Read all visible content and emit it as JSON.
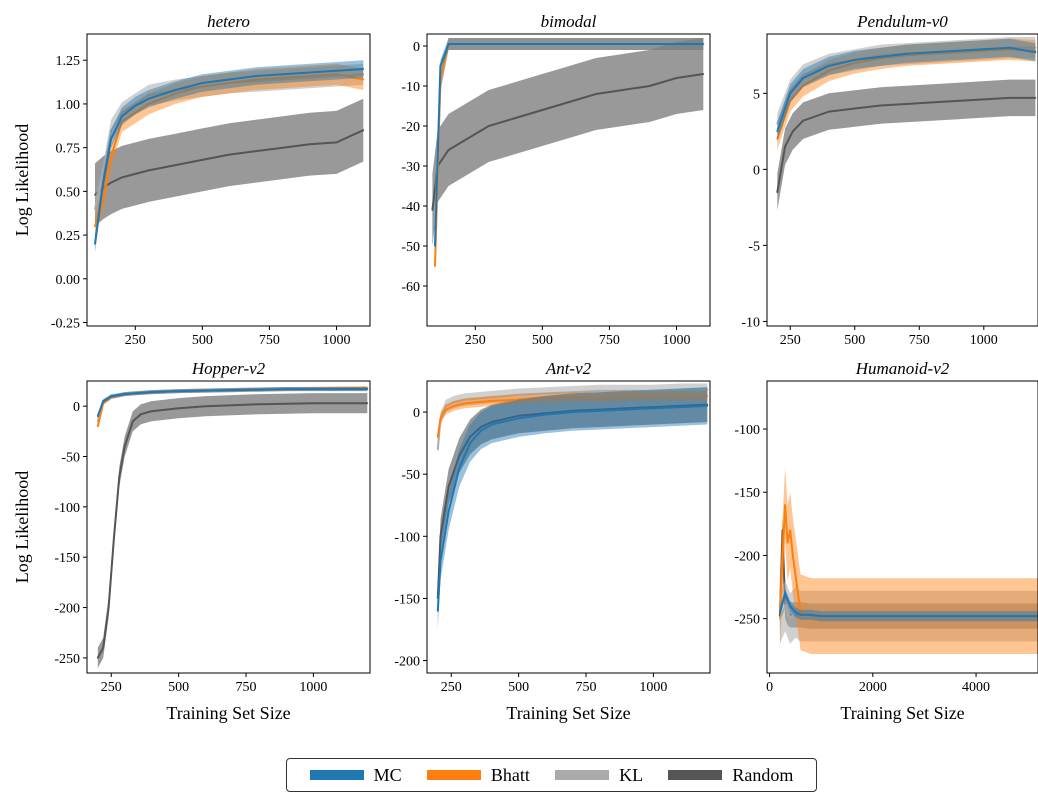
{
  "chart_data": [
    {
      "type": "line",
      "title": "hetero",
      "xlabel": "",
      "ylabel": "Log Likelihood",
      "xlim": [
        70,
        1125
      ],
      "ylim": [
        -0.27,
        1.4
      ],
      "xticks": [
        250,
        500,
        750,
        1000
      ],
      "yticks": [
        -0.25,
        0.0,
        0.25,
        0.5,
        0.75,
        1.0,
        1.25
      ],
      "ytick_labels": [
        "-0.25",
        "0.00",
        "0.25",
        "0.50",
        "0.75",
        "1.00",
        "1.25"
      ],
      "series": [
        {
          "name": "MC",
          "x": [
            100,
            130,
            160,
            200,
            250,
            300,
            400,
            500,
            600,
            700,
            800,
            900,
            1000,
            1100
          ],
          "values": [
            0.2,
            0.55,
            0.8,
            0.93,
            0.99,
            1.03,
            1.08,
            1.12,
            1.14,
            1.16,
            1.17,
            1.18,
            1.19,
            1.2
          ],
          "band": 0.05
        },
        {
          "name": "Bhatt",
          "x": [
            100,
            130,
            160,
            200,
            250,
            300,
            400,
            500,
            600,
            700,
            800,
            900,
            1000,
            1100
          ],
          "values": [
            0.3,
            0.45,
            0.7,
            0.9,
            0.95,
            1.0,
            1.06,
            1.1,
            1.12,
            1.14,
            1.15,
            1.16,
            1.17,
            1.14
          ],
          "band": 0.06
        },
        {
          "name": "KL",
          "x": [
            100,
            130,
            160,
            200,
            250,
            300,
            400,
            500,
            600,
            700,
            800,
            900,
            1000,
            1100
          ],
          "values": [
            0.4,
            0.6,
            0.85,
            0.95,
            1.0,
            1.05,
            1.08,
            1.1,
            1.12,
            1.13,
            1.14,
            1.15,
            1.16,
            1.17
          ],
          "band": 0.06
        },
        {
          "name": "Random",
          "x": [
            100,
            130,
            160,
            200,
            250,
            300,
            400,
            500,
            600,
            700,
            800,
            900,
            1000,
            1100
          ],
          "values": [
            0.48,
            0.52,
            0.55,
            0.58,
            0.6,
            0.62,
            0.65,
            0.68,
            0.71,
            0.73,
            0.75,
            0.77,
            0.78,
            0.85
          ],
          "band": 0.18
        }
      ]
    },
    {
      "type": "line",
      "title": "bimodal",
      "xlabel": "",
      "ylabel": "",
      "xlim": [
        70,
        1125
      ],
      "ylim": [
        -70,
        3
      ],
      "xticks": [
        250,
        500,
        750,
        1000
      ],
      "yticks": [
        -60,
        -50,
        -40,
        -30,
        -20,
        -10,
        0
      ],
      "ytick_labels": [
        "-60",
        "-50",
        "-40",
        "-30",
        "-20",
        "-10",
        "0"
      ],
      "series": [
        {
          "name": "MC",
          "x": [
            100,
            120,
            150,
            200,
            300,
            500,
            700,
            900,
            1100
          ],
          "values": [
            -50,
            -5,
            0.5,
            0.5,
            0.5,
            0.5,
            0.5,
            0.5,
            0.5
          ],
          "band": 1.5
        },
        {
          "name": "Bhatt",
          "x": [
            100,
            120,
            150,
            200,
            300,
            500,
            700,
            900,
            1100
          ],
          "values": [
            -55,
            -8,
            0.5,
            0.5,
            0.5,
            0.5,
            0.5,
            0.5,
            0.5
          ],
          "band": 1.5
        },
        {
          "name": "KL",
          "x": [
            100,
            120,
            150,
            200,
            300,
            500,
            700,
            900,
            1100
          ],
          "values": [
            -45,
            -10,
            0.5,
            0.5,
            0.5,
            0.5,
            0.5,
            0.5,
            0.5
          ],
          "band": 1.5
        },
        {
          "name": "Random",
          "x": [
            90,
            110,
            150,
            200,
            250,
            300,
            400,
            500,
            600,
            700,
            800,
            900,
            1000,
            1100
          ],
          "values": [
            -41,
            -30,
            -26,
            -24,
            -22,
            -20,
            -18,
            -16,
            -14,
            -12,
            -11,
            -10,
            -8,
            -7
          ],
          "band": 9
        }
      ]
    },
    {
      "type": "line",
      "title": "Pendulum-v0",
      "xlabel": "",
      "ylabel": "",
      "xlim": [
        160,
        1210
      ],
      "ylim": [
        -10.3,
        8.9
      ],
      "xticks": [
        250,
        500,
        750,
        1000
      ],
      "yticks": [
        -10,
        -5,
        0,
        5
      ],
      "ytick_labels": [
        "-10",
        "-5",
        "0",
        "5"
      ],
      "series": [
        {
          "name": "MC",
          "x": [
            200,
            250,
            300,
            400,
            500,
            600,
            700,
            800,
            900,
            1000,
            1100,
            1200
          ],
          "values": [
            2.5,
            5.0,
            6.0,
            6.8,
            7.2,
            7.4,
            7.6,
            7.7,
            7.8,
            7.9,
            8.0,
            7.7
          ],
          "band": 0.6
        },
        {
          "name": "Bhatt",
          "x": [
            200,
            250,
            300,
            400,
            500,
            600,
            700,
            800,
            900,
            1000,
            1100,
            1200
          ],
          "values": [
            2.0,
            4.5,
            5.5,
            6.5,
            7.0,
            7.3,
            7.5,
            7.6,
            7.7,
            7.8,
            7.9,
            7.8
          ],
          "band": 0.7
        },
        {
          "name": "KL",
          "x": [
            200,
            250,
            300,
            400,
            500,
            600,
            700,
            800,
            900,
            1000,
            1100,
            1200
          ],
          "values": [
            3.0,
            5.2,
            6.2,
            6.9,
            7.2,
            7.5,
            7.6,
            7.7,
            7.8,
            7.9,
            8.0,
            8.0
          ],
          "band": 0.7
        },
        {
          "name": "Random",
          "x": [
            200,
            230,
            260,
            300,
            400,
            500,
            600,
            700,
            800,
            900,
            1000,
            1100,
            1200
          ],
          "values": [
            -1.5,
            1.5,
            2.5,
            3.2,
            3.8,
            4.0,
            4.2,
            4.3,
            4.4,
            4.5,
            4.6,
            4.7,
            4.7
          ],
          "band": 1.2
        }
      ]
    },
    {
      "type": "line",
      "title": "Hopper-v2",
      "xlabel": "Training Set Size",
      "ylabel": "Log Likelihood",
      "xlim": [
        160,
        1210
      ],
      "ylim": [
        -265,
        25
      ],
      "xticks": [
        250,
        500,
        750,
        1000
      ],
      "yticks": [
        -250,
        -200,
        -150,
        -100,
        -50,
        0
      ],
      "ytick_labels": [
        "-250",
        "-200",
        "-150",
        "-100",
        "-50",
        "0"
      ],
      "series": [
        {
          "name": "MC",
          "x": [
            200,
            220,
            250,
            300,
            400,
            500,
            700,
            900,
            1200
          ],
          "values": [
            -10,
            5,
            10,
            12,
            14,
            15,
            16,
            17,
            17
          ],
          "band": 2
        },
        {
          "name": "Bhatt",
          "x": [
            200,
            220,
            250,
            300,
            400,
            500,
            700,
            900,
            1200
          ],
          "values": [
            -20,
            3,
            9,
            12,
            14,
            15,
            16,
            17,
            18
          ],
          "band": 2
        },
        {
          "name": "KL",
          "x": [
            200,
            220,
            250,
            300,
            400,
            500,
            700,
            900,
            1200
          ],
          "values": [
            -15,
            4,
            9,
            12,
            14,
            15,
            16,
            17,
            17
          ],
          "band": 2
        },
        {
          "name": "Random",
          "x": [
            200,
            220,
            240,
            260,
            280,
            300,
            330,
            360,
            400,
            500,
            600,
            800,
            1000,
            1200
          ],
          "values": [
            -250,
            -240,
            -200,
            -130,
            -70,
            -40,
            -15,
            -8,
            -5,
            -2,
            0,
            2,
            3,
            3
          ],
          "band": 10
        }
      ]
    },
    {
      "type": "line",
      "title": "Ant-v2",
      "xlabel": "Training Set Size",
      "ylabel": "",
      "xlim": [
        160,
        1210
      ],
      "ylim": [
        -210,
        25
      ],
      "xticks": [
        250,
        500,
        750,
        1000
      ],
      "yticks": [
        -200,
        -150,
        -100,
        -50,
        0
      ],
      "ytick_labels": [
        "-200",
        "-150",
        "-100",
        "-50",
        "0"
      ],
      "series": [
        {
          "name": "MC",
          "x": [
            200,
            210,
            240,
            280,
            320,
            360,
            400,
            500,
            600,
            700,
            800,
            900,
            1000,
            1100,
            1200
          ],
          "values": [
            -160,
            -120,
            -80,
            -45,
            -25,
            -15,
            -10,
            -5,
            -2,
            0,
            1,
            2,
            3,
            4,
            5
          ],
          "band": 15
        },
        {
          "name": "Bhatt",
          "x": [
            200,
            210,
            230,
            260,
            300,
            400,
            500,
            600,
            700,
            800,
            900,
            1000,
            1100,
            1200
          ],
          "values": [
            -20,
            -5,
            2,
            5,
            7,
            9,
            10,
            11,
            12,
            12,
            13,
            13,
            13,
            13
          ],
          "band": 4
        },
        {
          "name": "KL",
          "x": [
            200,
            210,
            230,
            260,
            300,
            400,
            500,
            600,
            700,
            800,
            900,
            1000,
            1100,
            1200
          ],
          "values": [
            -30,
            -5,
            5,
            8,
            10,
            12,
            14,
            15,
            16,
            17,
            17,
            17,
            18,
            18
          ],
          "band": 5
        },
        {
          "name": "Random",
          "x": [
            200,
            210,
            240,
            280,
            320,
            360,
            400,
            500,
            600,
            700,
            800,
            900,
            1000,
            1100,
            1200
          ],
          "values": [
            -150,
            -100,
            -60,
            -35,
            -20,
            -12,
            -8,
            -3,
            -1,
            1,
            2,
            3,
            4,
            5,
            6
          ],
          "band": 14
        }
      ]
    },
    {
      "type": "line",
      "title": "Humanoid-v2",
      "xlabel": "Training Set Size",
      "ylabel": "",
      "xlim": [
        -50,
        5200
      ],
      "ylim": [
        -293,
        -62
      ],
      "xticks": [
        0,
        2000,
        4000
      ],
      "yticks": [
        -250,
        -200,
        -150,
        -100
      ],
      "ytick_labels": [
        "-250",
        "-200",
        "-150",
        "-100"
      ],
      "series": [
        {
          "name": "MC",
          "x": [
            200,
            300,
            400,
            500,
            600,
            800,
            1000,
            2000,
            3000,
            4000,
            5200
          ],
          "values": [
            -245,
            -230,
            -240,
            -245,
            -247,
            -247,
            -248,
            -248,
            -248,
            -248,
            -248
          ],
          "band": 4
        },
        {
          "name": "Bhatt",
          "x": [
            200,
            300,
            350,
            400,
            450,
            500,
            550,
            600,
            800,
            1000,
            2000,
            3000,
            4000,
            5200
          ],
          "values": [
            -245,
            -160,
            -190,
            -180,
            -200,
            -215,
            -230,
            -245,
            -248,
            -248,
            -248,
            -248,
            -248,
            -248
          ],
          "band": 30
        },
        {
          "name": "KL",
          "x": [
            200,
            300,
            400,
            500,
            600,
            800,
            1000,
            2000,
            3000,
            4000,
            5200
          ],
          "values": [
            -250,
            -240,
            -250,
            -245,
            -248,
            -248,
            -248,
            -248,
            -248,
            -248,
            -248
          ],
          "band": 20
        },
        {
          "name": "Random",
          "x": [
            200,
            250,
            300,
            350,
            400,
            500,
            600,
            800,
            1000,
            2000,
            3000,
            4000,
            5200
          ],
          "values": [
            -248,
            -180,
            -240,
            -245,
            -247,
            -247,
            -247,
            -248,
            -248,
            -248,
            -248,
            -248,
            -248
          ],
          "band": 10
        }
      ]
    }
  ],
  "legend": {
    "placement": "bottom-center",
    "items": [
      {
        "name": "MC",
        "color": "#1f77b4"
      },
      {
        "name": "Bhatt",
        "color": "#ff7f0e"
      },
      {
        "name": "KL",
        "color": "#aaaaaa"
      },
      {
        "name": "Random",
        "color": "#555555"
      }
    ]
  },
  "colors": {
    "MC": "#1f77b4",
    "Bhatt": "#ff7f0e",
    "KL": "#aaaaaa",
    "Random": "#555555"
  }
}
